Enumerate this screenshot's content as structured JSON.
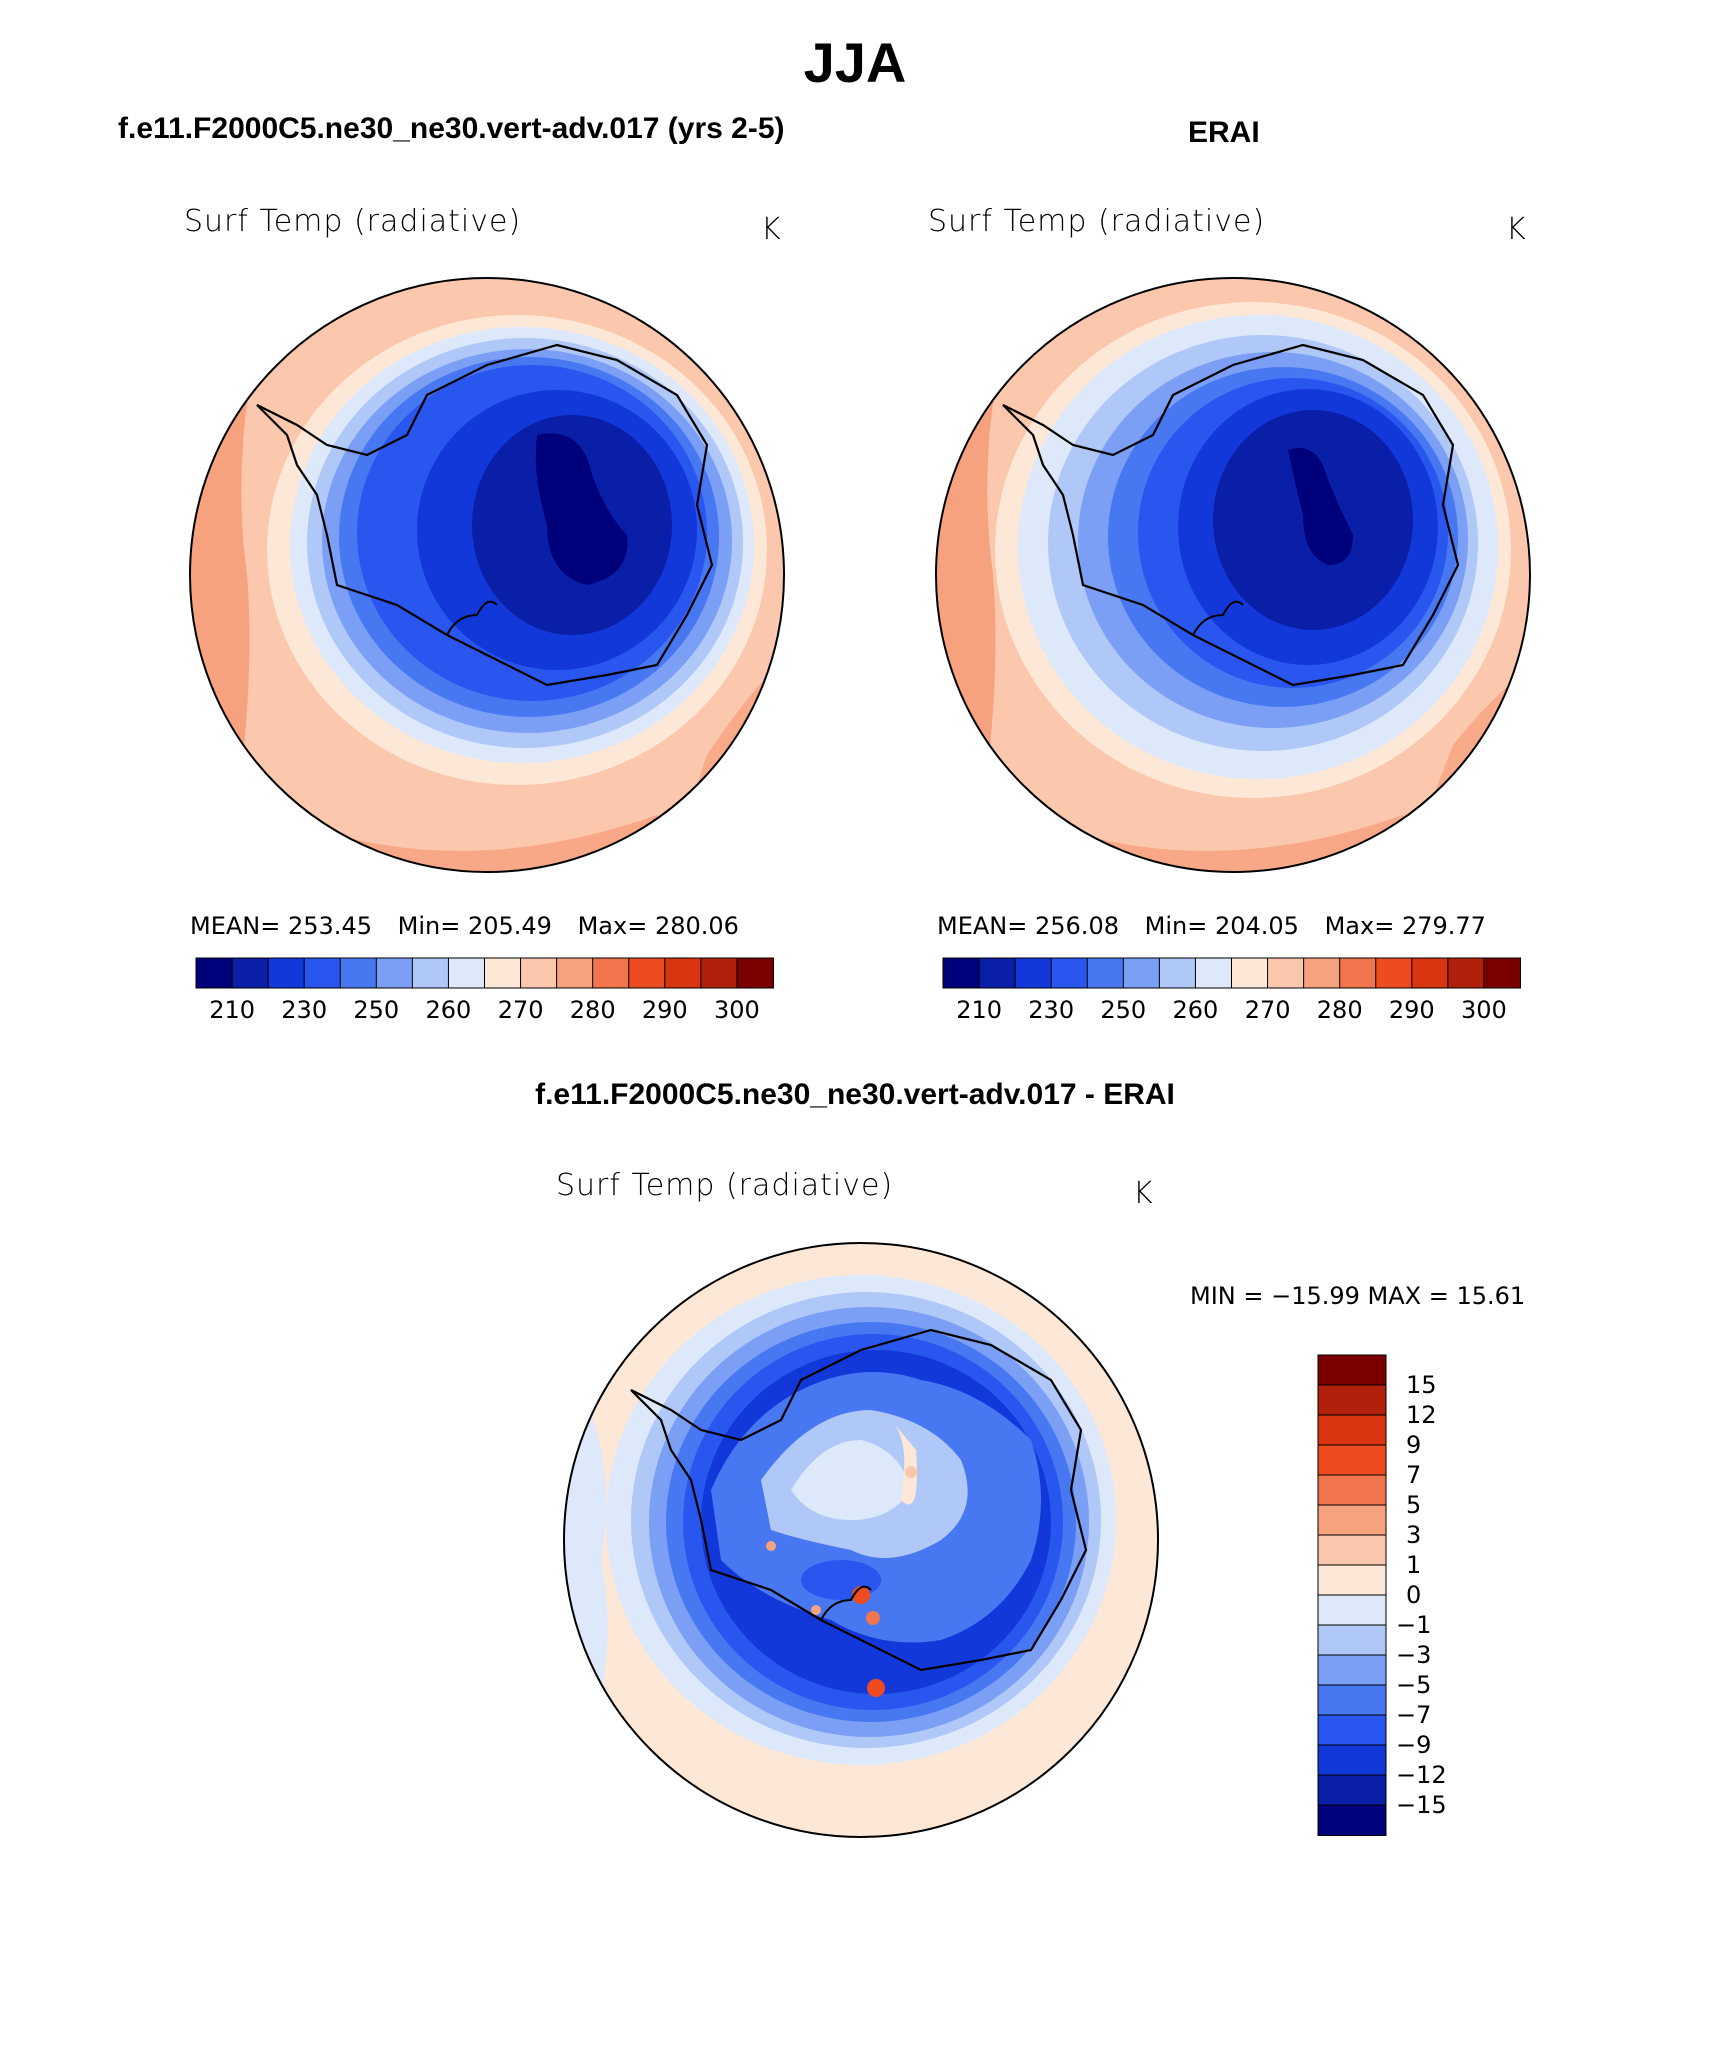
{
  "figure": {
    "season": "JJA",
    "panel_a": {
      "title": "f.e11.F2000C5.ne30_ne30.vert-adv.017 (yrs 2-5)",
      "variable": "Surf Temp (radiative)",
      "units": "K",
      "stats": {
        "mean_label": "MEAN=",
        "mean": "253.45",
        "min_label": "Min=",
        "min": "205.49",
        "max_label": "Max=",
        "max": "280.06"
      }
    },
    "panel_b": {
      "title": "ERAI",
      "variable": "Surf Temp (radiative)",
      "units": "K",
      "stats": {
        "mean_label": "MEAN=",
        "mean": "256.08",
        "min_label": "Min=",
        "min": "204.05",
        "max_label": "Max=",
        "max": "279.77"
      }
    },
    "panel_c": {
      "title": "f.e11.F2000C5.ne30_ne30.vert-adv.017 - ERAI",
      "variable": "Surf Temp (radiative)",
      "units": "K",
      "minmax": "MIN = −15.99 MAX =   15.61"
    }
  },
  "chart_data": [
    {
      "type": "heatmap",
      "subtype": "polar-stereographic contour map (Southern Hemisphere, Antarctica)",
      "title": "f.e11.F2000C5.ne30_ne30.vert-adv.017 (yrs 2-5)",
      "variable": "Surf Temp (radiative)",
      "units": "K",
      "mean": 253.45,
      "min": 205.49,
      "max": 280.06,
      "colorbar_levels": [
        210,
        230,
        250,
        260,
        270,
        280,
        290,
        300
      ],
      "colorbar_tick_labels": [
        "210",
        "230",
        "250",
        "260",
        "270",
        "280",
        "290",
        "300"
      ],
      "colorbar_colors": [
        "#00007a",
        "#0a1fa8",
        "#1238d9",
        "#2a56f0",
        "#4877f2",
        "#7a9ff5",
        "#b0c8f8",
        "#dde9fb",
        "#fde7d6",
        "#fbc7ad",
        "#f7a27f",
        "#f2764d",
        "#ee4b21",
        "#d93510",
        "#b0200a",
        "#7a0000"
      ]
    },
    {
      "type": "heatmap",
      "subtype": "polar-stereographic contour map (Southern Hemisphere, Antarctica)",
      "title": "ERAI",
      "variable": "Surf Temp (radiative)",
      "units": "K",
      "mean": 256.08,
      "min": 204.05,
      "max": 279.77,
      "colorbar_levels": [
        210,
        230,
        250,
        260,
        270,
        280,
        290,
        300
      ],
      "colorbar_tick_labels": [
        "210",
        "230",
        "250",
        "260",
        "270",
        "280",
        "290",
        "300"
      ],
      "colorbar_colors": [
        "#00007a",
        "#0a1fa8",
        "#1238d9",
        "#2a56f0",
        "#4877f2",
        "#7a9ff5",
        "#b0c8f8",
        "#dde9fb",
        "#fde7d6",
        "#fbc7ad",
        "#f7a27f",
        "#f2764d",
        "#ee4b21",
        "#d93510",
        "#b0200a",
        "#7a0000"
      ]
    },
    {
      "type": "heatmap",
      "subtype": "polar-stereographic difference contour map",
      "title": "f.e11.F2000C5.ne30_ne30.vert-adv.017 - ERAI",
      "variable": "Surf Temp (radiative)",
      "units": "K",
      "min": -15.99,
      "max": 15.61,
      "colorbar_levels": [
        15,
        12,
        9,
        7,
        5,
        3,
        1,
        0,
        -1,
        -3,
        -5,
        -7,
        -9,
        -12,
        -15
      ],
      "colorbar_tick_labels": [
        "15",
        "12",
        "9",
        "7",
        "5",
        "3",
        "1",
        "0",
        "−1",
        "−3",
        "−5",
        "−7",
        "−9",
        "−12",
        "−15"
      ],
      "colorbar_colors_top_to_bottom": [
        "#7a0000",
        "#b0200a",
        "#d93510",
        "#ee4b21",
        "#f2764d",
        "#f7a27f",
        "#fbc7ad",
        "#fde7d6",
        "#dde9fb",
        "#b0c8f8",
        "#7a9ff5",
        "#4877f2",
        "#2a56f0",
        "#1238d9",
        "#0a1fa8",
        "#00007a"
      ]
    }
  ]
}
